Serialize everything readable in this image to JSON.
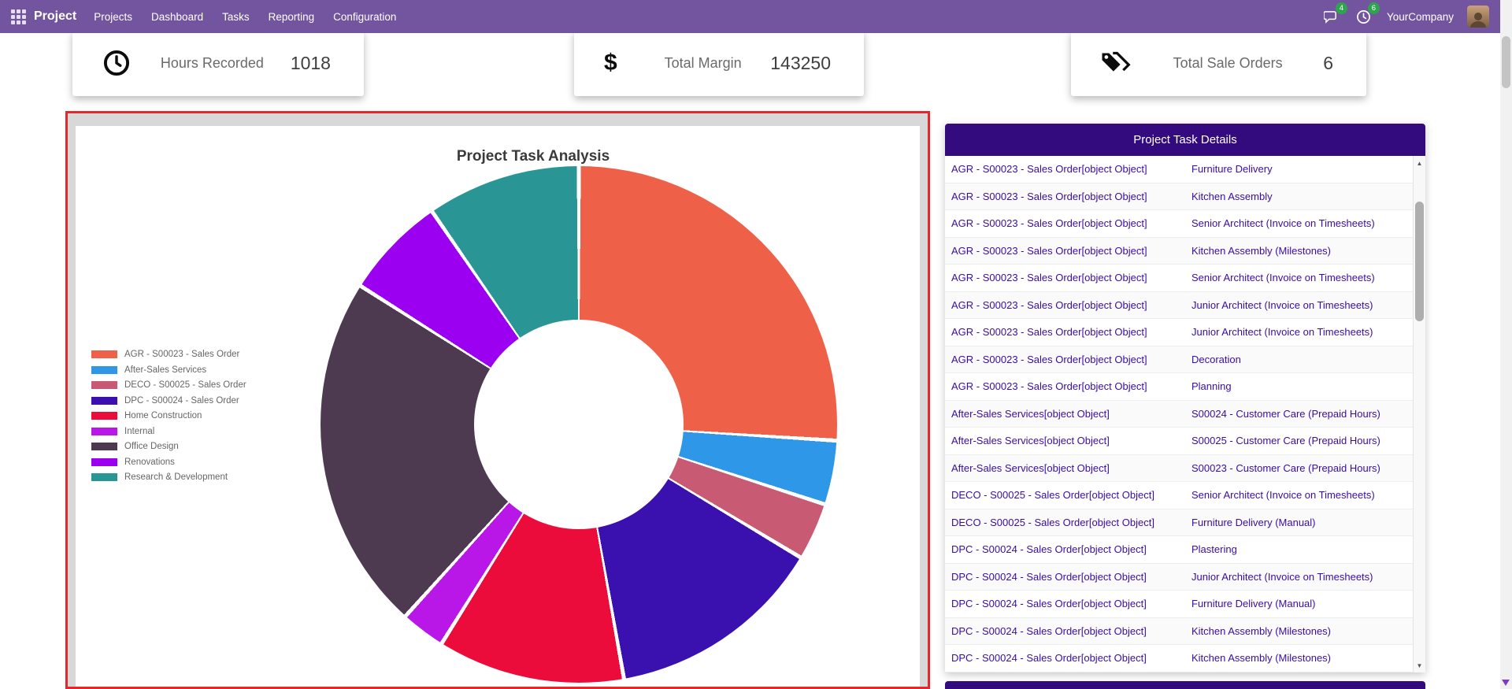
{
  "colors": {
    "navbar": "#72559e",
    "panel": "#330b7e",
    "rowtext": "#3a0ca3",
    "highlight": "#e8252a",
    "badge": "#2ea44f"
  },
  "navbar": {
    "brand": "Project",
    "menu": [
      {
        "label": "Projects"
      },
      {
        "label": "Dashboard"
      },
      {
        "label": "Tasks"
      },
      {
        "label": "Reporting"
      },
      {
        "label": "Configuration"
      }
    ],
    "messages_badge": "4",
    "activities_badge": "6",
    "company": "YourCompany"
  },
  "kpis": [
    {
      "icon": "clock-icon",
      "label": "Hours Recorded",
      "value": "1018"
    },
    {
      "icon": "dollar-icon",
      "label": "Total Margin",
      "value": "143250"
    },
    {
      "icon": "tags-icon",
      "label": "Total Sale Orders",
      "value": "6"
    }
  ],
  "chart_data": {
    "type": "pie",
    "variant": "doughnut",
    "title": "Project Task Analysis",
    "legend_position": "left",
    "labels": [
      "AGR - S00023 - Sales Order",
      "After-Sales Services",
      "DECO - S00025 - Sales Order",
      "DPC - S00024 - Sales Order",
      "Home Construction",
      "Internal",
      "Office Design",
      "Renovations",
      "Research & Development"
    ],
    "values": [
      26,
      4,
      3.6,
      13.6,
      11.7,
      2.8,
      22.3,
      6.4,
      9.6
    ],
    "unit": "percent-estimate",
    "colors": [
      "#ee6148",
      "#2e97e8",
      "#c85a74",
      "#3a10ae",
      "#ec0c3c",
      "#b817e8",
      "#4d3a51",
      "#9b00f0",
      "#2a9595"
    ]
  },
  "task_table": {
    "title": "Project Task Details",
    "rows": [
      [
        "AGR - S00023 - Sales Order[object Object]",
        "Furniture Delivery"
      ],
      [
        "AGR - S00023 - Sales Order[object Object]",
        "Kitchen Assembly"
      ],
      [
        "AGR - S00023 - Sales Order[object Object]",
        "Senior Architect (Invoice on Timesheets)"
      ],
      [
        "AGR - S00023 - Sales Order[object Object]",
        "Kitchen Assembly (Milestones)"
      ],
      [
        "AGR - S00023 - Sales Order[object Object]",
        "Senior Architect (Invoice on Timesheets)"
      ],
      [
        "AGR - S00023 - Sales Order[object Object]",
        "Junior Architect (Invoice on Timesheets)"
      ],
      [
        "AGR - S00023 - Sales Order[object Object]",
        "Junior Architect (Invoice on Timesheets)"
      ],
      [
        "AGR - S00023 - Sales Order[object Object]",
        "Decoration"
      ],
      [
        "AGR - S00023 - Sales Order[object Object]",
        "Planning"
      ],
      [
        "After-Sales Services[object Object]",
        "S00024 - Customer Care (Prepaid Hours)"
      ],
      [
        "After-Sales Services[object Object]",
        "S00025 - Customer Care (Prepaid Hours)"
      ],
      [
        "After-Sales Services[object Object]",
        "S00023 - Customer Care (Prepaid Hours)"
      ],
      [
        "DECO - S00025 - Sales Order[object Object]",
        "Senior Architect (Invoice on Timesheets)"
      ],
      [
        "DECO - S00025 - Sales Order[object Object]",
        "Furniture Delivery (Manual)"
      ],
      [
        "DPC - S00024 - Sales Order[object Object]",
        "Plastering"
      ],
      [
        "DPC - S00024 - Sales Order[object Object]",
        "Junior Architect (Invoice on Timesheets)"
      ],
      [
        "DPC - S00024 - Sales Order[object Object]",
        "Furniture Delivery (Manual)"
      ],
      [
        "DPC - S00024 - Sales Order[object Object]",
        "Kitchen Assembly (Milestones)"
      ],
      [
        "DPC - S00024 - Sales Order[object Object]",
        "Kitchen Assembly (Milestones)"
      ]
    ]
  }
}
